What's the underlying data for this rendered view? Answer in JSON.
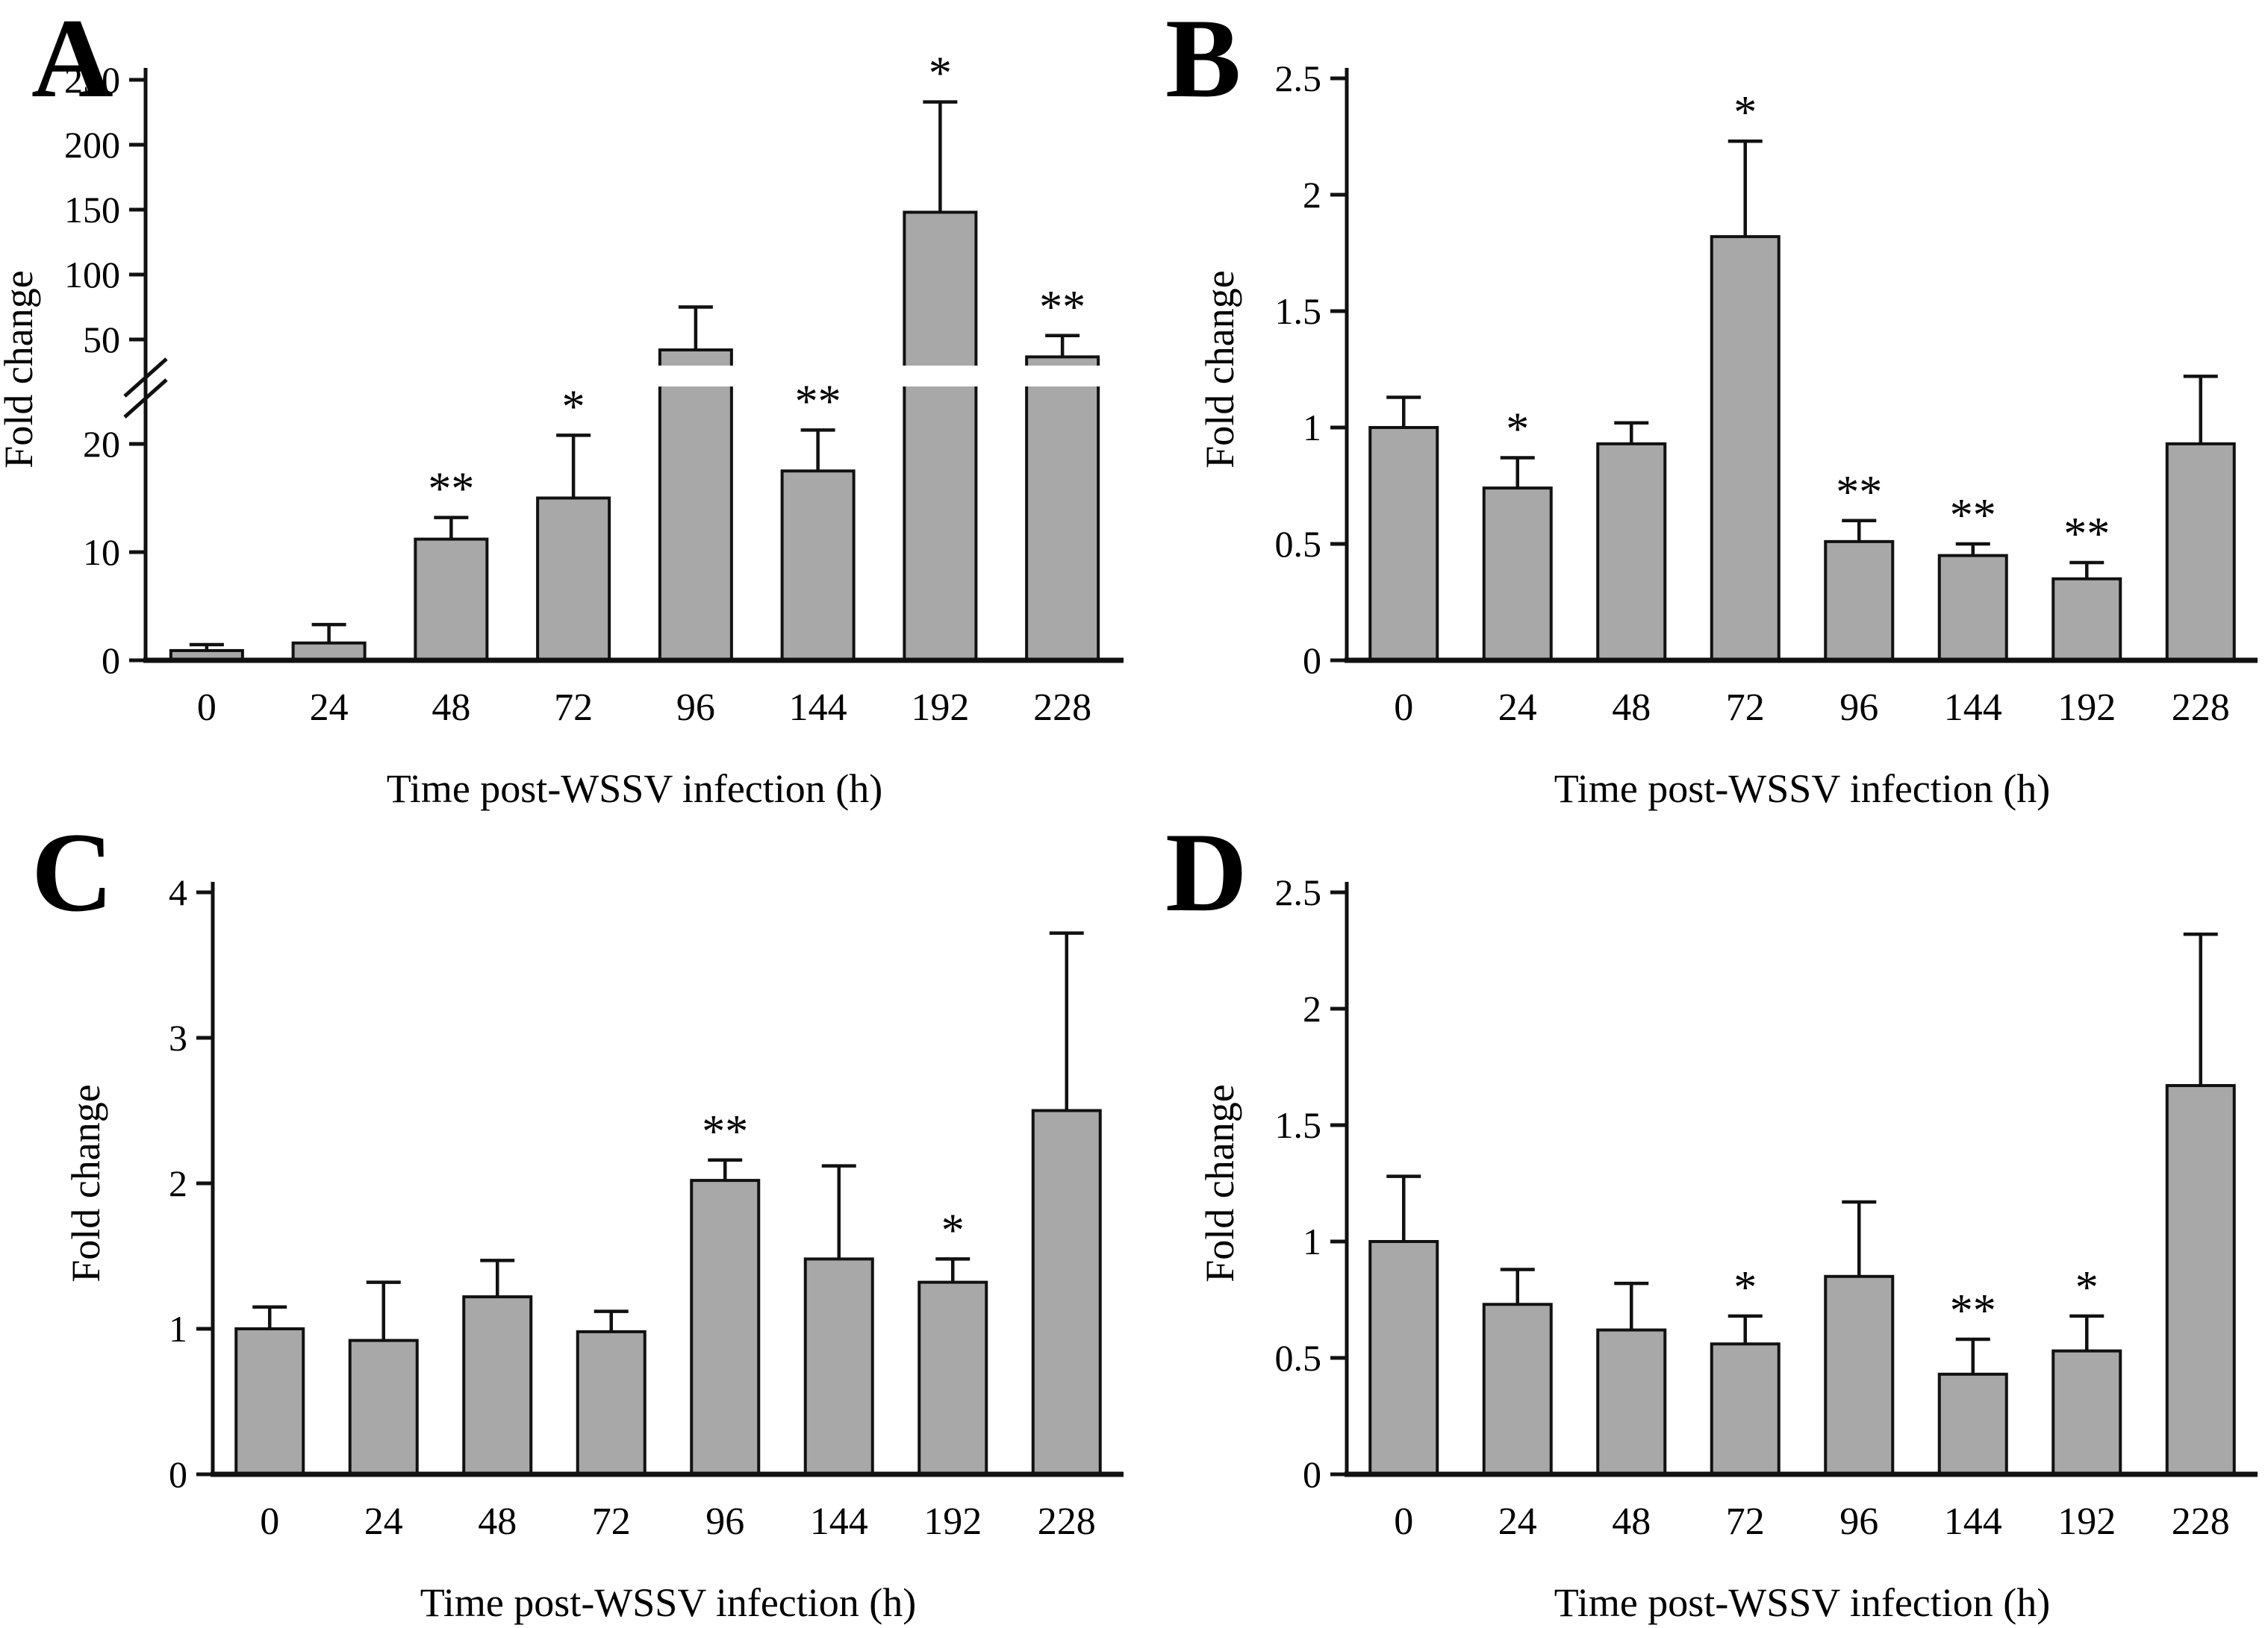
{
  "figure": {
    "background": "#ffffff",
    "x_axis_label": "Time post-WSSV infection (h)",
    "y_axis_label": "Fold change",
    "categories": [
      "0",
      "24",
      "48",
      "72",
      "96",
      "144",
      "192",
      "228"
    ],
    "styles": {
      "bar_fill": "#a8a8a8",
      "bar_stroke": "#111111",
      "axis_color": "#111111",
      "significance_1": "*",
      "significance_2": "**"
    }
  },
  "chart_data": [
    {
      "panel": "A",
      "type": "bar",
      "xlabel": "Time post-WSSV infection (h)",
      "ylabel": "Fold change",
      "categories": [
        "0",
        "24",
        "48",
        "72",
        "96",
        "144",
        "192",
        "228"
      ],
      "values": [
        0.9,
        1.6,
        11.2,
        15,
        47,
        17.5,
        148,
        45
      ],
      "error_tops": [
        1.45,
        3.3,
        13.2,
        22.5,
        75,
        24,
        233,
        53
      ],
      "significance": [
        "",
        "",
        "**",
        "*",
        "",
        "**",
        "*",
        "**"
      ],
      "y_axis": {
        "broken": true,
        "lower_ticks": [
          "0",
          "10",
          "20"
        ],
        "upper_ticks": [
          "50",
          "100",
          "150",
          "200",
          "250"
        ],
        "lower_max": 20,
        "break_resume_value": 50,
        "upper_max": 250
      }
    },
    {
      "panel": "B",
      "type": "bar",
      "xlabel": "Time post-WSSV infection (h)",
      "ylabel": "Fold change",
      "categories": [
        "0",
        "24",
        "48",
        "72",
        "96",
        "144",
        "192",
        "228"
      ],
      "values": [
        1.0,
        0.74,
        0.93,
        1.82,
        0.51,
        0.45,
        0.35,
        0.93
      ],
      "error_tops": [
        1.13,
        0.87,
        1.02,
        2.23,
        0.6,
        0.5,
        0.42,
        1.22
      ],
      "significance": [
        "",
        "*",
        "",
        "*",
        "**",
        "**",
        "**",
        ""
      ],
      "y_axis": {
        "broken": false,
        "ticks": [
          "0",
          "0.5",
          "1",
          "1.5",
          "2",
          "2.5"
        ],
        "max": 2.5
      }
    },
    {
      "panel": "C",
      "type": "bar",
      "xlabel": "Time post-WSSV infection (h)",
      "ylabel": "Fold change",
      "categories": [
        "0",
        "24",
        "48",
        "72",
        "96",
        "144",
        "192",
        "228"
      ],
      "values": [
        1.0,
        0.92,
        1.22,
        0.98,
        2.02,
        1.48,
        1.32,
        2.5
      ],
      "error_tops": [
        1.15,
        1.32,
        1.47,
        1.12,
        2.16,
        2.12,
        1.48,
        3.72
      ],
      "significance": [
        "",
        "",
        "",
        "",
        "**",
        "",
        "*",
        ""
      ],
      "y_axis": {
        "broken": false,
        "ticks": [
          "0",
          "1",
          "2",
          "3",
          "4"
        ],
        "max": 4
      }
    },
    {
      "panel": "D",
      "type": "bar",
      "xlabel": "Time post-WSSV infection (h)",
      "ylabel": "Fold change",
      "categories": [
        "0",
        "24",
        "48",
        "72",
        "96",
        "144",
        "192",
        "228"
      ],
      "values": [
        1.0,
        0.73,
        0.62,
        0.56,
        0.85,
        0.43,
        0.53,
        1.67
      ],
      "error_tops": [
        1.28,
        0.88,
        0.82,
        0.68,
        1.17,
        0.58,
        0.68,
        2.32
      ],
      "significance": [
        "",
        "",
        "",
        "*",
        "",
        "**",
        "*",
        ""
      ],
      "y_axis": {
        "broken": false,
        "ticks": [
          "0",
          "0.5",
          "1",
          "1.5",
          "2",
          "2.5"
        ],
        "max": 2.5
      }
    }
  ]
}
